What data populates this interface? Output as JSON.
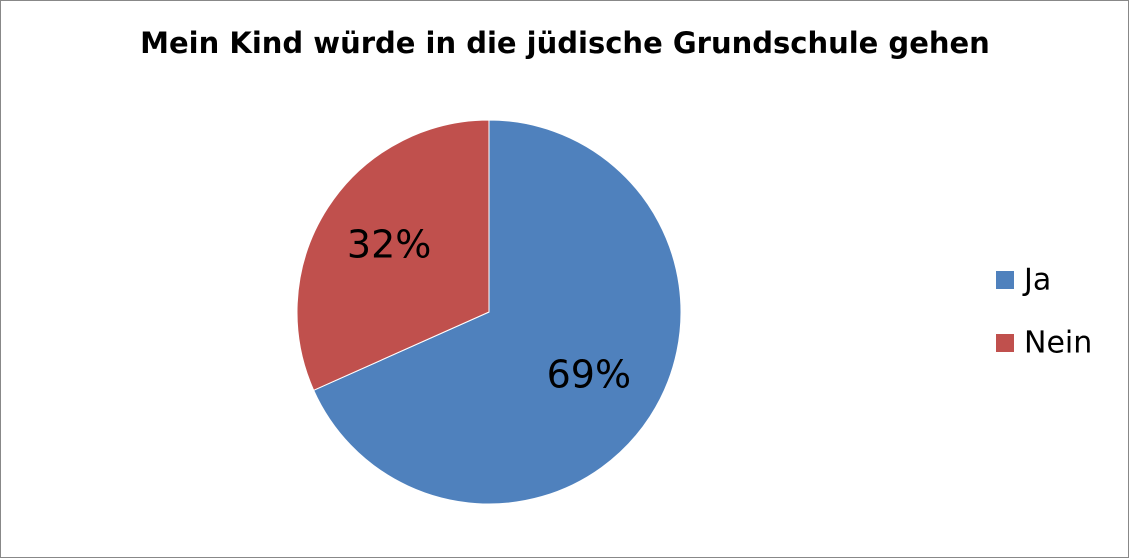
{
  "chart_data": {
    "type": "pie",
    "title": "Mein Kind würde in die jüdische Grundschule gehen",
    "categories": [
      "Ja",
      "Nein"
    ],
    "values": [
      69,
      32
    ],
    "value_labels": [
      "69%",
      "32%"
    ],
    "colors": [
      "#4f81bd",
      "#c0504d"
    ],
    "legend": "right"
  }
}
